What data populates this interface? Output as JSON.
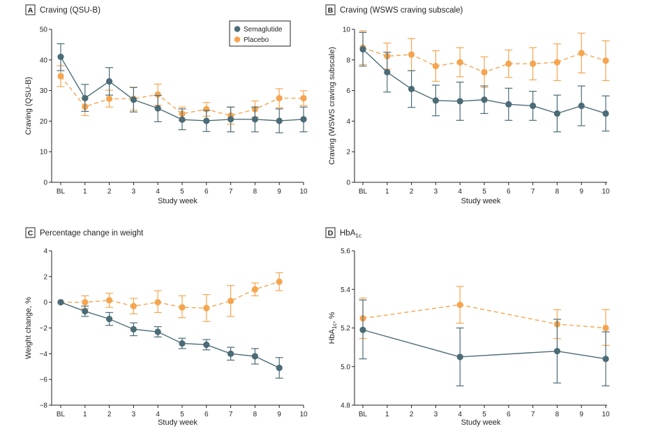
{
  "colors": {
    "semaglutide": "#4b6b76",
    "placebo": "#f5a550",
    "axis": "#231f20"
  },
  "legend": [
    {
      "name": "Semaglutide",
      "color": "#4b6b76"
    },
    {
      "name": "Placebo",
      "color": "#f5a550"
    }
  ],
  "chart_data": [
    {
      "panel": "A",
      "type": "line",
      "title": "Craving (QSU-B)",
      "xlabel": "Study week",
      "ylabel": "Craving (QSU-B)",
      "categories": [
        "BL",
        "1",
        "2",
        "3",
        "4",
        "5",
        "6",
        "7",
        "8",
        "9",
        "10"
      ],
      "ylim": [
        0,
        50
      ],
      "yticks": [
        "0",
        "10",
        "20",
        "30",
        "40",
        "50"
      ],
      "grid": false,
      "legend_position": "top-right",
      "series": [
        {
          "name": "Semaglutide",
          "color": "#4b6b76",
          "dash": false,
          "x": [
            "BL",
            "1",
            "2",
            "3",
            "4",
            "5",
            "6",
            "7",
            "8",
            "9",
            "10"
          ],
          "values": [
            41,
            27.5,
            33,
            27,
            24.2,
            20.5,
            20.1,
            20.6,
            20.6,
            20.1,
            20.6
          ],
          "err_low": [
            36.5,
            23.2,
            28.5,
            23,
            19.8,
            17.2,
            16.6,
            16.5,
            16.5,
            16.2,
            16.5
          ],
          "err_high": [
            45.3,
            32,
            37.5,
            31,
            28.4,
            24,
            23.5,
            24.6,
            24.6,
            24,
            24.6
          ]
        },
        {
          "name": "Placebo",
          "color": "#f5a550",
          "dash": true,
          "x": [
            "BL",
            "1",
            "2",
            "3",
            "4",
            "5",
            "6",
            "7",
            "8",
            "9",
            "10"
          ],
          "values": [
            34.7,
            24.7,
            27.3,
            27.3,
            28.7,
            22.4,
            23.9,
            21.8,
            23.9,
            27.5,
            27.5
          ],
          "err_low": [
            31.3,
            21.8,
            24.6,
            23.6,
            25.2,
            20.2,
            21.6,
            19,
            21.3,
            24.4,
            25.1
          ],
          "err_high": [
            38.1,
            27.5,
            30.1,
            31.1,
            32.1,
            24.6,
            26.1,
            24.6,
            26.6,
            30.6,
            29.9
          ]
        }
      ]
    },
    {
      "panel": "B",
      "type": "line",
      "title": "Craving (WSWS craving subscale)",
      "xlabel": "Study week",
      "ylabel": "Craving (WSWS craving subscale)",
      "categories": [
        "BL",
        "1",
        "2",
        "3",
        "4",
        "5",
        "6",
        "7",
        "8",
        "9",
        "10"
      ],
      "ylim": [
        0,
        10
      ],
      "yticks": [
        "0",
        "2",
        "4",
        "6",
        "8",
        "10"
      ],
      "grid": false,
      "series": [
        {
          "name": "Semaglutide",
          "color": "#4b6b76",
          "dash": false,
          "x": [
            "BL",
            "1",
            "2",
            "3",
            "4",
            "5",
            "6",
            "7",
            "8",
            "9",
            "10"
          ],
          "values": [
            8.7,
            7.2,
            6.1,
            5.35,
            5.3,
            5.4,
            5.1,
            5,
            4.5,
            5,
            4.5
          ],
          "err_low": [
            7.6,
            5.9,
            4.9,
            4.35,
            4.05,
            4.5,
            4.05,
            4.05,
            3.3,
            3.7,
            3.35
          ],
          "err_high": [
            9.8,
            8.5,
            7.3,
            6.35,
            6.55,
            6.3,
            6.15,
            5.95,
            5.7,
            6.3,
            5.65
          ]
        },
        {
          "name": "Placebo",
          "color": "#f5a550",
          "dash": true,
          "x": [
            "BL",
            "1",
            "2",
            "3",
            "4",
            "5",
            "6",
            "7",
            "8",
            "9",
            "10"
          ],
          "values": [
            8.8,
            8.25,
            8.35,
            7.6,
            7.85,
            7.2,
            7.75,
            7.75,
            7.85,
            8.45,
            7.95
          ],
          "err_low": [
            7.7,
            7.4,
            7.3,
            6.6,
            6.9,
            6.2,
            6.85,
            6.7,
            6.65,
            7.15,
            6.65
          ],
          "err_high": [
            9.9,
            9.1,
            9.4,
            8.6,
            8.8,
            8.2,
            8.65,
            8.8,
            9.05,
            9.75,
            9.25
          ]
        }
      ]
    },
    {
      "panel": "C",
      "type": "line",
      "title": "Percentage change in weight",
      "xlabel": "Study week",
      "ylabel": "Weight change, %",
      "categories": [
        "BL",
        "1",
        "2",
        "3",
        "4",
        "5",
        "6",
        "7",
        "8",
        "9",
        "10"
      ],
      "ylim": [
        -8,
        4
      ],
      "yticks": [
        "−8",
        "−6",
        "−4",
        "−2",
        "0",
        "2",
        "4"
      ],
      "grid": false,
      "series": [
        {
          "name": "Semaglutide",
          "color": "#4b6b76",
          "dash": false,
          "x": [
            "BL",
            "1",
            "2",
            "3",
            "4",
            "5",
            "6",
            "7",
            "8",
            "9"
          ],
          "values": [
            0,
            -0.7,
            -1.3,
            -2.1,
            -2.3,
            -3.2,
            -3.3,
            -4,
            -4.2,
            -5.1
          ],
          "err_low": [
            0,
            -1.1,
            -1.8,
            -2.6,
            -2.7,
            -3.6,
            -3.7,
            -4.5,
            -4.8,
            -5.9
          ],
          "err_high": [
            0,
            -0.3,
            -0.8,
            -1.6,
            -1.9,
            -2.8,
            -2.9,
            -3.5,
            -3.6,
            -4.3
          ]
        },
        {
          "name": "Placebo",
          "color": "#f5a550",
          "dash": true,
          "x": [
            "BL",
            "1",
            "2",
            "3",
            "4",
            "5",
            "6",
            "7",
            "8",
            "9"
          ],
          "values": [
            0,
            0,
            0.15,
            -0.3,
            0,
            -0.4,
            -0.45,
            0.1,
            1,
            1.6
          ],
          "err_low": [
            0,
            -0.5,
            -0.4,
            -0.9,
            -0.8,
            -1.2,
            -1.5,
            -1.1,
            0.5,
            0.9
          ],
          "err_high": [
            0,
            0.5,
            0.7,
            0.3,
            0.9,
            0.5,
            0.6,
            1.3,
            1.5,
            2.3
          ]
        }
      ]
    },
    {
      "panel": "D",
      "type": "line",
      "title": "HbA",
      "title_sub": "1c",
      "xlabel": "Study week",
      "ylabel": "HbA",
      "ylabel_sub": "1c",
      "ylabel_suffix": ", %",
      "categories": [
        "BL",
        "1",
        "2",
        "3",
        "4",
        "5",
        "6",
        "7",
        "8",
        "9",
        "10"
      ],
      "ylim": [
        4.8,
        5.6
      ],
      "yticks": [
        "4.8",
        "5.0",
        "5.2",
        "5.4",
        "5.6"
      ],
      "grid": false,
      "series": [
        {
          "name": "Semaglutide",
          "color": "#4b6b76",
          "dash": false,
          "x": [
            "BL",
            "4",
            "8",
            "10"
          ],
          "values": [
            5.19,
            5.05,
            5.08,
            5.04
          ],
          "err_low": [
            5.04,
            4.9,
            4.915,
            4.9
          ],
          "err_high": [
            5.345,
            5.2,
            5.245,
            5.18
          ]
        },
        {
          "name": "Placebo",
          "color": "#f5a550",
          "dash": true,
          "x": [
            "BL",
            "4",
            "8",
            "10"
          ],
          "values": [
            5.25,
            5.32,
            5.22,
            5.2
          ],
          "err_low": [
            5.145,
            5.225,
            5.145,
            5.11
          ],
          "err_high": [
            5.355,
            5.415,
            5.295,
            5.295
          ]
        }
      ]
    }
  ]
}
